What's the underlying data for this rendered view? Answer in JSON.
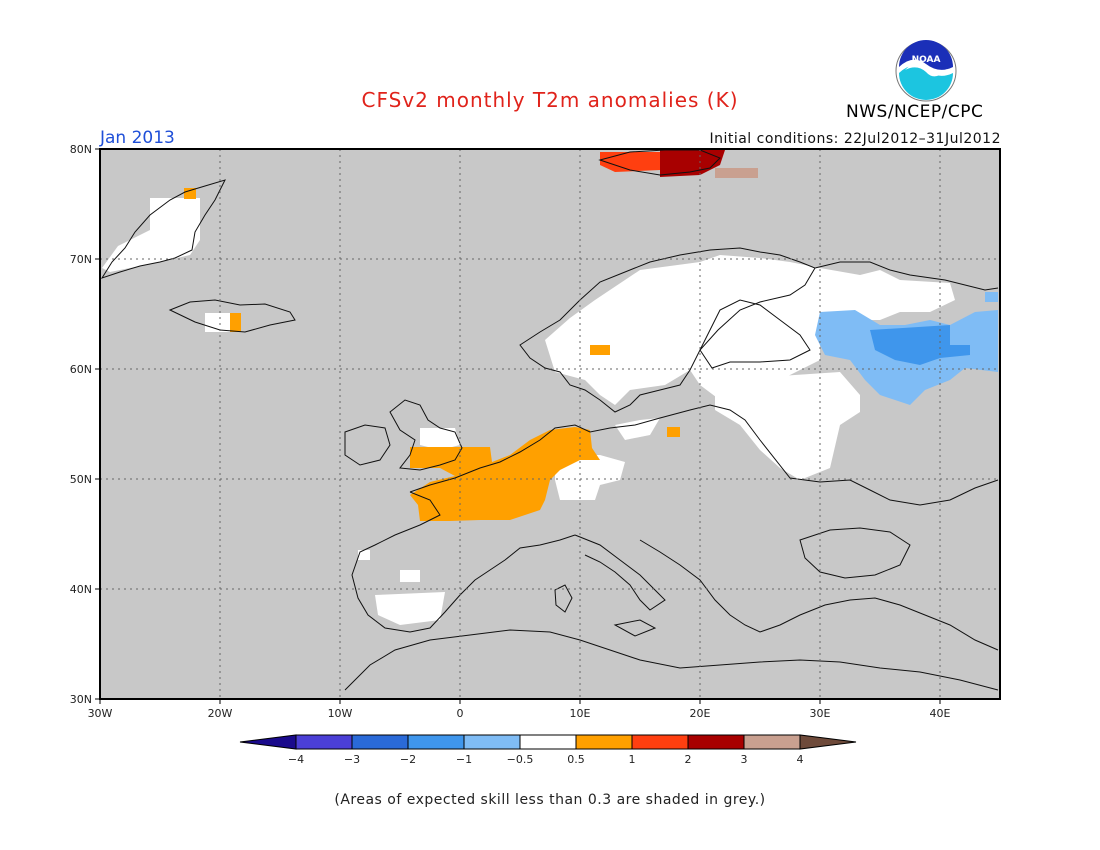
{
  "header": {
    "title": "CFSv2 monthly T2m anomalies (K)",
    "month": "Jan 2013",
    "initial_conditions": "Initial conditions: 22Jul2012–31Jul2012",
    "agency": "NWS/NCEP/CPC",
    "logo_text": "NOAA"
  },
  "map": {
    "lat_labels": [
      "80N",
      "70N",
      "60N",
      "50N",
      "40N",
      "30N"
    ],
    "lon_labels": [
      "30W",
      "20W",
      "10W",
      "0",
      "10E",
      "20E",
      "30E",
      "40E"
    ],
    "background_color": "#c8c8c8"
  },
  "colorbar": {
    "labels": [
      "−4",
      "−3",
      "−2",
      "−1",
      "−0.5",
      "0.5",
      "1",
      "2",
      "3",
      "4"
    ],
    "colors": [
      "#1a0a8c",
      "#4b3fd6",
      "#2a6ad8",
      "#3f96ec",
      "#7fbcf5",
      "#ffffff",
      "#ffa000",
      "#ff3f10",
      "#a80000",
      "#c9a090",
      "#6e4a3a"
    ]
  },
  "footnote": "(Areas of expected skill less than 0.3 are shaded in grey.)"
}
